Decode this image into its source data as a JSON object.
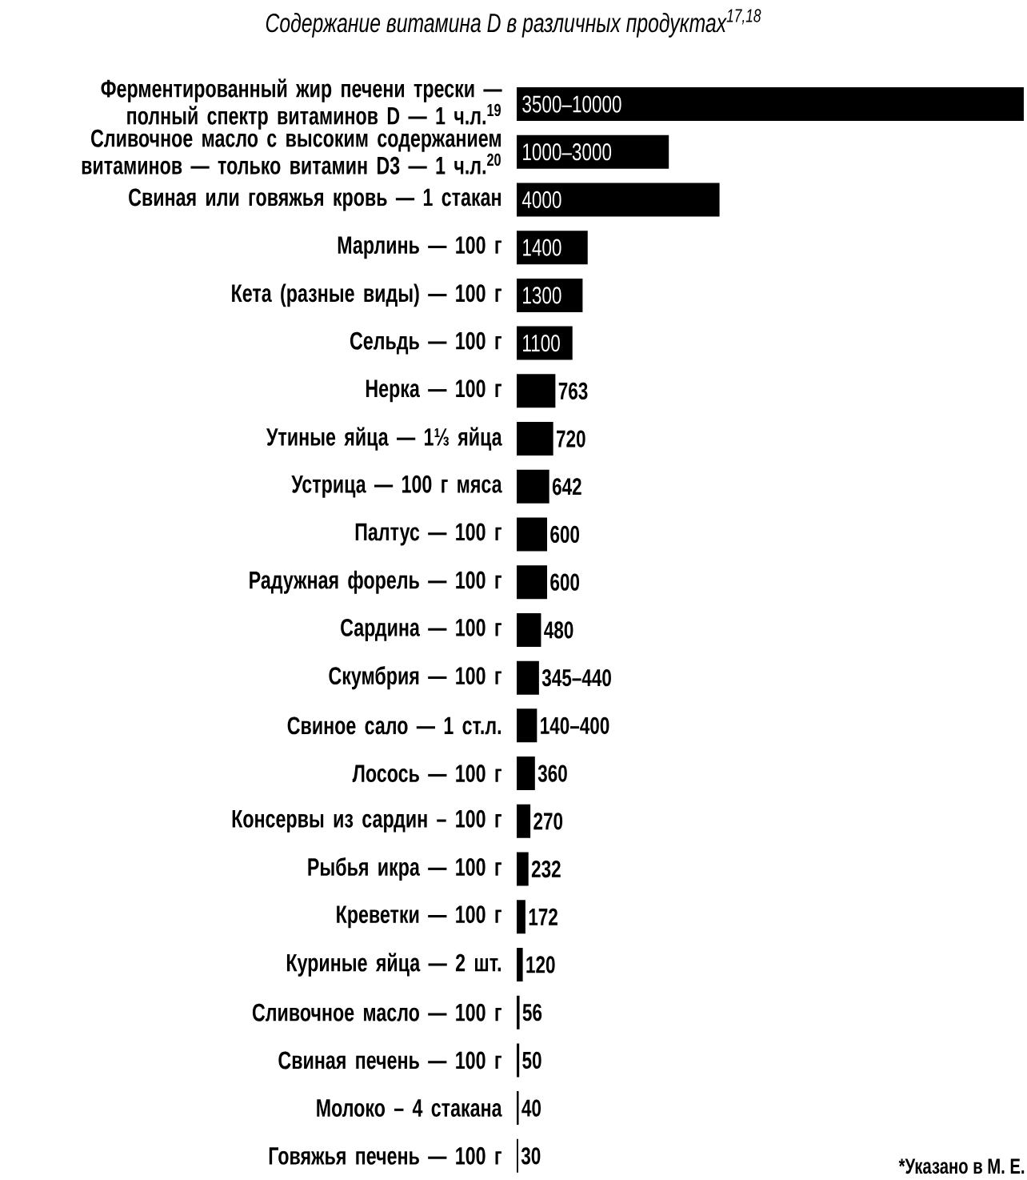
{
  "chart_data": {
    "type": "bar",
    "orientation": "horizontal",
    "title": "Содержание витамина D в различных продуктах$^{17,18}$",
    "categories": [
      "Ферментированный жир печени трески — полный спектр витаминов D — 1 ч.л.$^{19}$",
      "Сливочное масло с высоким содержанием витаминов — только витамин D3 — 1 ч.л.$^{20}$",
      "Свиная или говяжья кровь — 1 стакан",
      "Марлинь — 100 г",
      "Кета (разные виды) — 100 г",
      "Сельдь — 100 г",
      "Нерка — 100 г",
      "Утиные яйца — 1⅓ яйца",
      "Устрица — 100 г мяса",
      "Палтус — 100 г",
      "Радужная форель — 100 г",
      "Сардина — 100 г",
      "Скумбрия — 100 г",
      "Свиное сало — 1 ст.л.",
      "Лосось — 100 г",
      "Консервы из сардин – 100 г",
      "Рыбья икра — 100 г",
      "Креветки — 100 г",
      "Куриные яйца — 2 шт.",
      "Сливочное масло — 100 г",
      "Свиная печень — 100 г",
      "Молоко – 4 стакана",
      "Говяжья печень — 100 г"
    ],
    "values": [
      10000,
      3000,
      4000,
      1400,
      1300,
      1100,
      763,
      720,
      642,
      600,
      600,
      480,
      440,
      400,
      360,
      270,
      232,
      172,
      120,
      56,
      50,
      40,
      30
    ],
    "value_labels": [
      "3500–10000",
      "1000–3000",
      "4000",
      "1400",
      "1300",
      "1100",
      "763",
      "720",
      "642",
      "600",
      "600",
      "480",
      "345–440",
      "140–400",
      "360",
      "270",
      "232",
      "172",
      "120",
      "56",
      "50",
      "40",
      "30"
    ],
    "color": "#000000",
    "annotations": [
      "*Указано в М. Е."
    ]
  }
}
